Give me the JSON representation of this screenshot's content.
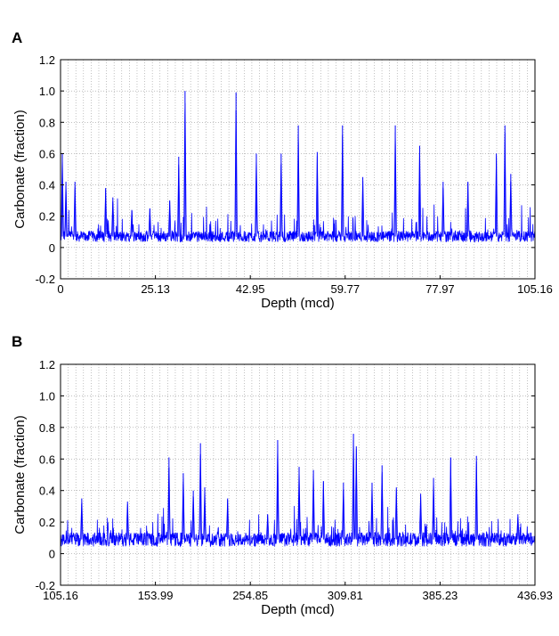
{
  "chart_data": [
    {
      "panel_label": "A",
      "type": "line",
      "xlabel": "Depth (mcd)",
      "ylabel": "Carbonate (fraction)",
      "xlim": [
        0,
        105.16
      ],
      "ylim": [
        -0.2,
        1.2
      ],
      "x_ticks": [
        "0",
        "25.13",
        "42.95",
        "59.77",
        "77.97",
        "105.16"
      ],
      "y_ticks": [
        "-0.2",
        "0",
        "0.2",
        "0.4",
        "0.6",
        "0.8",
        "1.0",
        "1.2"
      ],
      "grid": "dotted",
      "color": "#0000ff",
      "baseline": 0.07,
      "noise": 0.035,
      "n_points": 1600,
      "peaks": [
        {
          "x": 0.4,
          "y": 0.6
        },
        {
          "x": 1.2,
          "y": 0.42
        },
        {
          "x": 3.2,
          "y": 0.42
        },
        {
          "x": 10.0,
          "y": 0.38
        },
        {
          "x": 11.6,
          "y": 0.32
        },
        {
          "x": 15.8,
          "y": 0.24
        },
        {
          "x": 19.8,
          "y": 0.25
        },
        {
          "x": 24.2,
          "y": 0.3
        },
        {
          "x": 26.2,
          "y": 0.58
        },
        {
          "x": 27.6,
          "y": 1.0
        },
        {
          "x": 38.9,
          "y": 0.99
        },
        {
          "x": 43.4,
          "y": 0.6
        },
        {
          "x": 48.9,
          "y": 0.6
        },
        {
          "x": 52.7,
          "y": 0.78
        },
        {
          "x": 56.9,
          "y": 0.61
        },
        {
          "x": 62.5,
          "y": 0.78
        },
        {
          "x": 67.0,
          "y": 0.45
        },
        {
          "x": 74.2,
          "y": 0.78
        },
        {
          "x": 79.6,
          "y": 0.65
        },
        {
          "x": 84.8,
          "y": 0.42
        },
        {
          "x": 90.3,
          "y": 0.42
        },
        {
          "x": 96.6,
          "y": 0.6
        },
        {
          "x": 98.5,
          "y": 0.78
        },
        {
          "x": 99.8,
          "y": 0.47
        }
      ]
    },
    {
      "panel_label": "B",
      "type": "line",
      "xlabel": "Depth (mcd)",
      "ylabel": "Carbonate (fraction)",
      "xlim": [
        105.16,
        436.93
      ],
      "ylim": [
        -0.2,
        1.2
      ],
      "x_ticks": [
        "105.16",
        "153.99",
        "254.85",
        "309.81",
        "385.23",
        "436.93"
      ],
      "y_ticks": [
        "-0.2",
        "0",
        "0.2",
        "0.4",
        "0.6",
        "0.8",
        "1.0",
        "1.2"
      ],
      "grid": "dotted",
      "color": "#0000ff",
      "baseline": 0.09,
      "noise": 0.045,
      "n_points": 1600,
      "peaks": [
        {
          "x": 120.0,
          "y": 0.35
        },
        {
          "x": 152.0,
          "y": 0.33
        },
        {
          "x": 181.0,
          "y": 0.61
        },
        {
          "x": 191.0,
          "y": 0.51
        },
        {
          "x": 198.0,
          "y": 0.4
        },
        {
          "x": 203.0,
          "y": 0.7
        },
        {
          "x": 206.0,
          "y": 0.42
        },
        {
          "x": 222.0,
          "y": 0.35
        },
        {
          "x": 250.0,
          "y": 0.25
        },
        {
          "x": 257.0,
          "y": 0.72
        },
        {
          "x": 272.0,
          "y": 0.55
        },
        {
          "x": 282.0,
          "y": 0.53
        },
        {
          "x": 289.0,
          "y": 0.46
        },
        {
          "x": 303.0,
          "y": 0.45
        },
        {
          "x": 310.0,
          "y": 0.76
        },
        {
          "x": 312.0,
          "y": 0.68
        },
        {
          "x": 323.0,
          "y": 0.45
        },
        {
          "x": 330.0,
          "y": 0.56
        },
        {
          "x": 340.0,
          "y": 0.42
        },
        {
          "x": 357.0,
          "y": 0.38
        },
        {
          "x": 366.0,
          "y": 0.48
        },
        {
          "x": 378.0,
          "y": 0.61
        },
        {
          "x": 396.0,
          "y": 0.62
        },
        {
          "x": 425.0,
          "y": 0.25
        }
      ]
    }
  ]
}
